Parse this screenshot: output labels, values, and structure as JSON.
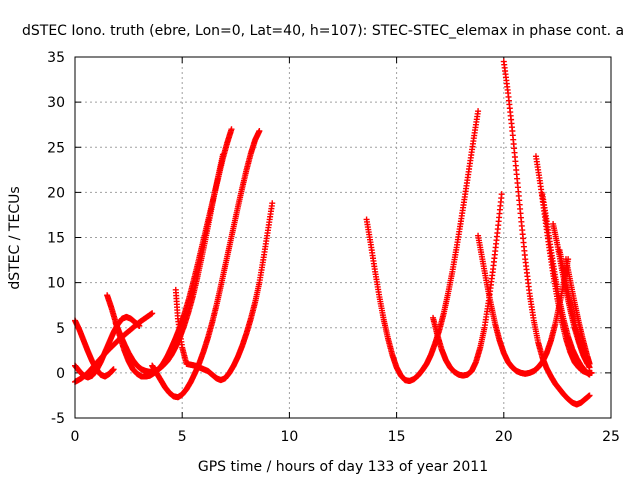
{
  "chart_data": {
    "type": "scatter",
    "title": "dSTEC Iono. truth (ebre, Lon=0, Lat=40, h=107): STEC-STEC_elemax in phase cont. a",
    "xlabel": "GPS time / hours of day 133 of year 2011",
    "ylabel": "dSTEC  / TECUs",
    "xlim": [
      0,
      25
    ],
    "ylim": [
      -5,
      35
    ],
    "xticks": [
      0,
      5,
      10,
      15,
      20,
      25
    ],
    "yticks": [
      -5,
      0,
      5,
      10,
      15,
      20,
      25,
      30,
      35
    ],
    "grid": true,
    "marker": "+",
    "color": "#ff0000",
    "series": [
      {
        "x": [
          0.0,
          0.3,
          0.6,
          0.9,
          1.2,
          1.5,
          1.8,
          2.1,
          2.4,
          2.7,
          3.0,
          3.3,
          3.6
        ],
        "y": [
          -1.0,
          -0.6,
          0.0,
          0.8,
          1.6,
          2.4,
          3.1,
          3.8,
          4.4,
          5.0,
          5.6,
          6.1,
          6.6
        ]
      },
      {
        "x": [
          0.0,
          0.2,
          0.4,
          0.6,
          0.8,
          1.0,
          1.2,
          1.4,
          1.6,
          1.8,
          2.0,
          2.2,
          2.4,
          2.6,
          2.8,
          3.0
        ],
        "y": [
          0.8,
          0.2,
          -0.3,
          -0.5,
          -0.3,
          0.3,
          1.2,
          2.3,
          3.4,
          4.5,
          5.4,
          6.0,
          6.2,
          6.0,
          5.6,
          5.2
        ]
      },
      {
        "x": [
          0.0,
          0.2,
          0.4,
          0.6,
          0.8,
          1.0,
          1.2,
          1.4,
          1.6,
          1.8
        ],
        "y": [
          5.8,
          4.8,
          3.6,
          2.4,
          1.3,
          0.4,
          -0.2,
          -0.4,
          -0.1,
          0.4
        ]
      },
      {
        "x": [
          1.5,
          1.7,
          1.9,
          2.1,
          2.3,
          2.5,
          2.7,
          2.9,
          3.1,
          3.3,
          3.5,
          3.7,
          3.9,
          4.1,
          4.3,
          4.5,
          4.7,
          4.9,
          5.1,
          5.3,
          5.5,
          5.7,
          5.9,
          6.1,
          6.3,
          6.5,
          6.7,
          6.9,
          7.1,
          7.3
        ],
        "y": [
          8.6,
          7.2,
          5.6,
          4.0,
          2.5,
          1.3,
          0.4,
          -0.1,
          -0.4,
          -0.4,
          -0.3,
          0.0,
          0.4,
          1.0,
          1.8,
          2.8,
          3.9,
          5.1,
          6.5,
          8.1,
          9.9,
          11.8,
          13.8,
          15.8,
          17.8,
          19.8,
          21.8,
          23.8,
          25.5,
          27.0
        ]
      },
      {
        "x": [
          1.9,
          2.1,
          2.3,
          2.5,
          2.7,
          2.9,
          3.1,
          3.3,
          3.5,
          3.7,
          3.9,
          4.1,
          4.3,
          4.5,
          4.7,
          4.9,
          5.1,
          5.3,
          5.5,
          5.7,
          5.9,
          6.1,
          6.3,
          6.5,
          6.7,
          6.9
        ],
        "y": [
          5.5,
          4.3,
          3.2,
          2.2,
          1.4,
          0.8,
          0.4,
          0.2,
          0.1,
          0.2,
          0.4,
          0.8,
          1.3,
          2.0,
          2.9,
          4.0,
          5.3,
          6.8,
          8.5,
          10.5,
          12.7,
          15.0,
          17.4,
          19.8,
          22.0,
          24.2
        ]
      },
      {
        "x": [
          3.6,
          3.8,
          4.0,
          4.2,
          4.4,
          4.6,
          4.8,
          5.0,
          5.2,
          5.4,
          5.6,
          5.8,
          6.0,
          6.2,
          6.4,
          6.6,
          6.8,
          7.0,
          7.2,
          7.4,
          7.6,
          7.8,
          8.0,
          8.2,
          8.4,
          8.6
        ],
        "y": [
          0.8,
          0.0,
          -0.8,
          -1.6,
          -2.2,
          -2.6,
          -2.7,
          -2.4,
          -1.8,
          -1.0,
          0.0,
          1.1,
          2.4,
          3.9,
          5.6,
          7.5,
          9.6,
          11.8,
          14.0,
          16.2,
          18.4,
          20.5,
          22.5,
          24.3,
          25.8,
          26.8
        ]
      },
      {
        "x": [
          4.7,
          4.8,
          5.0,
          5.2,
          5.4,
          5.6,
          5.8,
          6.0,
          6.2,
          6.4,
          6.6,
          6.8,
          7.0,
          7.2,
          7.4,
          7.6,
          7.8,
          8.0,
          8.2,
          8.4,
          8.6,
          8.8,
          9.0,
          9.2
        ],
        "y": [
          9.2,
          6.0,
          2.8,
          1.0,
          0.9,
          0.8,
          0.6,
          0.4,
          0.2,
          -0.2,
          -0.6,
          -0.8,
          -0.6,
          0.0,
          0.8,
          1.8,
          3.0,
          4.4,
          6.0,
          7.8,
          10.0,
          12.8,
          15.8,
          18.8
        ]
      },
      {
        "x": [
          13.6,
          13.8,
          14.0,
          14.2,
          14.4,
          14.6,
          14.8,
          15.0,
          15.2,
          15.4,
          15.6,
          15.8,
          16.0,
          16.2,
          16.4,
          16.6,
          16.8,
          17.0,
          17.2,
          17.4,
          17.6,
          17.8,
          18.0,
          18.2,
          18.4,
          18.6,
          18.8
        ],
        "y": [
          17.0,
          14.2,
          11.2,
          8.4,
          5.9,
          3.8,
          2.0,
          0.6,
          -0.3,
          -0.8,
          -0.9,
          -0.7,
          -0.3,
          0.3,
          1.0,
          2.0,
          3.3,
          4.8,
          6.6,
          8.8,
          11.2,
          13.9,
          16.8,
          19.8,
          22.9,
          26.0,
          29.0
        ]
      },
      {
        "x": [
          16.7,
          16.9,
          17.1,
          17.3,
          17.5,
          17.7,
          17.9,
          18.1,
          18.3,
          18.5,
          18.7,
          18.9,
          19.1,
          19.3,
          19.5,
          19.7,
          19.9
        ],
        "y": [
          6.1,
          4.2,
          2.6,
          1.4,
          0.6,
          0.1,
          -0.2,
          -0.3,
          -0.2,
          0.2,
          1.2,
          2.8,
          5.0,
          8.0,
          11.5,
          15.5,
          19.8
        ]
      },
      {
        "x": [
          18.8,
          19.0,
          19.2,
          19.4,
          19.6,
          19.8,
          20.0,
          20.2,
          20.4,
          20.6,
          20.8,
          21.0,
          21.2,
          21.4,
          21.6,
          21.8,
          22.0,
          22.2,
          22.4,
          22.6,
          22.8,
          23.0
        ],
        "y": [
          15.2,
          12.6,
          10.0,
          7.6,
          5.4,
          3.6,
          2.2,
          1.2,
          0.6,
          0.2,
          0.0,
          -0.1,
          0.0,
          0.2,
          0.6,
          1.2,
          2.2,
          3.6,
          5.4,
          7.6,
          10.0,
          12.6
        ]
      },
      {
        "x": [
          20.0,
          20.2,
          20.4,
          20.6,
          20.8,
          21.0,
          21.2,
          21.4,
          21.6,
          21.8,
          22.0,
          22.2,
          22.4,
          22.6,
          22.8,
          23.0,
          23.2,
          23.4,
          23.6,
          23.8,
          24.0
        ],
        "y": [
          34.5,
          31.0,
          26.8,
          22.0,
          17.2,
          12.6,
          8.8,
          5.8,
          3.4,
          1.7,
          0.5,
          -0.4,
          -1.2,
          -1.8,
          -2.4,
          -2.9,
          -3.3,
          -3.5,
          -3.3,
          -2.9,
          -2.5
        ]
      },
      {
        "x": [
          21.5,
          21.7,
          21.9,
          22.1,
          22.3,
          22.5,
          22.7,
          22.9,
          23.1,
          23.3,
          23.5,
          23.7,
          23.9,
          24.1
        ],
        "y": [
          24.0,
          21.0,
          17.6,
          14.2,
          11.0,
          8.2,
          5.8,
          3.8,
          2.3,
          1.2,
          0.6,
          0.2,
          0.0,
          0.0
        ]
      },
      {
        "x": [
          21.8,
          22.0,
          22.2,
          22.4,
          22.6,
          22.8,
          23.0,
          23.2,
          23.4,
          23.6,
          23.8,
          24.0
        ],
        "y": [
          19.8,
          16.8,
          13.6,
          10.6,
          8.0,
          5.8,
          4.0,
          2.6,
          1.6,
          0.8,
          0.2,
          -0.2
        ]
      },
      {
        "x": [
          22.3,
          22.5,
          22.7,
          22.9,
          23.1,
          23.3,
          23.5,
          23.7,
          23.9
        ],
        "y": [
          16.5,
          14.2,
          11.6,
          9.2,
          7.0,
          5.0,
          3.4,
          2.0,
          1.0
        ]
      },
      {
        "x": [
          22.6,
          22.8,
          23.0,
          23.2,
          23.4,
          23.6,
          23.8,
          24.0
        ],
        "y": [
          13.6,
          11.2,
          8.8,
          6.6,
          4.6,
          3.0,
          1.6,
          0.6
        ]
      },
      {
        "x": [
          22.9,
          23.1,
          23.3,
          23.5,
          23.7,
          23.9,
          24.0
        ],
        "y": [
          12.6,
          10.2,
          7.8,
          5.6,
          3.6,
          1.8,
          1.0
        ]
      }
    ]
  }
}
